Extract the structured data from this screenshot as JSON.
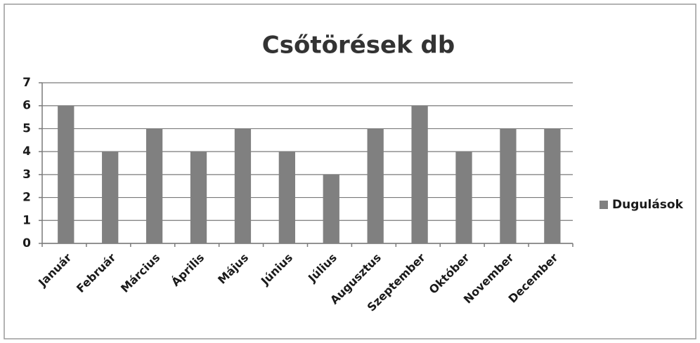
{
  "chart_data": {
    "type": "bar",
    "title": "Csőtörések db",
    "categories": [
      "Január",
      "Február",
      "Március",
      "Április",
      "Május",
      "Június",
      "Július",
      "Augusztus",
      "Szeptember",
      "Október",
      "November",
      "December"
    ],
    "series": [
      {
        "name": "Dugulások",
        "color": "#808080",
        "values": [
          6,
          4,
          5,
          4,
          5,
          4,
          3,
          5,
          6,
          4,
          5,
          5
        ]
      }
    ],
    "ylim": [
      0,
      7
    ],
    "yticks": [
      0,
      1,
      2,
      3,
      4,
      5,
      6,
      7
    ],
    "grid": true,
    "legend": "right"
  }
}
